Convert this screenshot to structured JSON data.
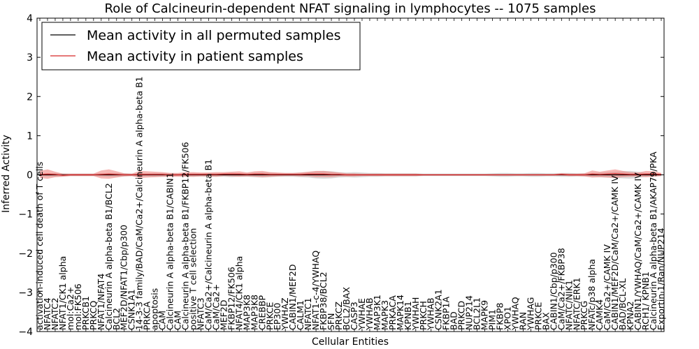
{
  "chart_data": {
    "type": "line",
    "title": "Role of Calcineurin-dependent NFAT signaling in lymphocytes -- 1075 samples",
    "xlabel": "Cellular Entities",
    "ylabel": "Inferred Activity",
    "ylim": [
      -4,
      4
    ],
    "yticks": [
      -4,
      -3,
      -2,
      -1,
      0,
      1,
      2,
      3,
      4
    ],
    "grid": false,
    "legend_position": "top-left",
    "categories": [
      "activation-induced cell death of T cells",
      "NFATC4",
      "NFATC2",
      "NFAT1/CK1 alpha",
      "mol:Ca2+",
      "mol:FK506",
      "PRKCB1",
      "PRKCQ",
      "NFAT1/NFAT4",
      "Calcineurin A alpha-beta B1/BCL2",
      "BCL2",
      "MEF2D/NFAT1/Cbp/p300",
      "CSNK1A1",
      "14-3-3 family/BAD/CaM/Ca2+/Calcineurin A alpha-beta B1",
      "PRKCA",
      "apoptosis",
      "CAM",
      "Calcineurin A alpha-beta B1/CABIN1",
      "CAM",
      "Calcineurin A alpha-beta B1/FKBP12/FK506",
      "positive T cell selection",
      "NFATC3",
      "CaM/Ca2+/Calcineurin A alpha-beta B1",
      "CaM/Ca2+",
      "MEF2D",
      "FKBP12/FK506",
      "NFAT4/CK1 alpha",
      "MAP3K8",
      "MAP3K8",
      "CREBBP",
      "PRKCE",
      "EP300",
      "YWHAZ",
      "CABIN1/MEF2D",
      "CALM1",
      "NFATC1",
      "NFAT1-c-4/YWHAQ",
      "FKBP38/BCL2",
      "SFN",
      "PRKCZ",
      "BCL2/BAX",
      "CASP3",
      "YWHAE",
      "YWHAB",
      "MAP3K1",
      "MAPK3",
      "PRKACA",
      "MAPK14",
      "KPNB1",
      "YWHAH",
      "PRKCH",
      "YWHAB",
      "CSNK2A1",
      "FKBP1A",
      "BAD",
      "PRKCD",
      "NUP214",
      "BCL2L1",
      "MAPK9",
      "PIM1",
      "FKBP8",
      "XPO1",
      "YWHAQ",
      "RAN",
      "YWHAG",
      "PRKCE",
      "BAX",
      "CABIN1/Cbp/p300",
      "CaM/Ca2+/FKBP38",
      "NFATC/NIK1",
      "NFATC/ERK1",
      "PRKCG",
      "NFATc/p38 alpha",
      "CAMK4",
      "CaM/Ca2+/CAMK IV",
      "CABIN1/MEF2D/CaM/Ca2+/CAMK IV",
      "BAD/BCL-XL",
      "KPNA2",
      "CABIN1/YWHAQ/CaM/Ca2+/CAMK IV",
      "RCH1/ KPNB1",
      "Calcineurin A alpha-beta B1/AKAP79/PKA",
      "Exportin 1/Ran/NUP214"
    ],
    "series": [
      {
        "name": "Mean activity in all permuted samples",
        "color": "#000000",
        "values": [
          0,
          0,
          0,
          0,
          0,
          0,
          0,
          0,
          0,
          0,
          0,
          0,
          0,
          0,
          0,
          0,
          0,
          0,
          0,
          0,
          0,
          0,
          0,
          0,
          0,
          0,
          0,
          0,
          0,
          0,
          0,
          0,
          0,
          0,
          0,
          0,
          0,
          0,
          0,
          0,
          0,
          0,
          0,
          0,
          0,
          0,
          0,
          0,
          0,
          0,
          0,
          0,
          0,
          0,
          0,
          0,
          0,
          0,
          0,
          0,
          0,
          0,
          0,
          0,
          0,
          0,
          0,
          0,
          0,
          0,
          0,
          0,
          0,
          0,
          0,
          0,
          0,
          0,
          0,
          0,
          0,
          0
        ],
        "band": [
          0.03,
          0.04,
          0.05,
          0.04,
          0.03,
          0.03,
          0.03,
          0.03,
          0.04,
          0.05,
          0.05,
          0.04,
          0.03,
          0.04,
          0.04,
          0.05,
          0.05,
          0.04,
          0.03,
          0.04,
          0.05,
          0.04,
          0.05,
          0.05,
          0.05,
          0.06,
          0.05,
          0.05,
          0.06,
          0.07,
          0.06,
          0.05,
          0.05,
          0.05,
          0.06,
          0.07,
          0.09,
          0.1,
          0.09,
          0.07,
          0.06,
          0.07,
          0.06,
          0.05,
          0.05,
          0.04,
          0.04,
          0.04,
          0.04,
          0.04,
          0.03,
          0.03,
          0.03,
          0.03,
          0.03,
          0.03,
          0.03,
          0.03,
          0.03,
          0.04,
          0.05,
          0.05,
          0.04,
          0.04,
          0.05,
          0.05,
          0.04,
          0.04,
          0.05,
          0.05,
          0.04,
          0.04,
          0.05,
          0.06,
          0.07,
          0.08,
          0.09,
          0.1,
          0.08,
          0.05,
          0.04,
          0.03
        ]
      },
      {
        "name": "Mean activity in patient samples",
        "color": "#d62728",
        "values": [
          0.01,
          0.02,
          0.01,
          -0.01,
          0,
          0,
          0,
          0,
          0.01,
          0.02,
          0.01,
          0,
          0,
          0.01,
          0.01,
          0.01,
          0.01,
          0,
          0,
          0.01,
          0.01,
          0.01,
          0.01,
          0.01,
          0.02,
          0.02,
          0.02,
          0.01,
          0.02,
          0.02,
          0.01,
          0.01,
          0.01,
          0.01,
          0.01,
          0.02,
          0.02,
          0.02,
          0.01,
          0.01,
          0,
          0,
          0,
          0,
          0,
          0,
          0,
          0,
          0,
          0,
          0,
          0,
          0,
          0,
          0,
          0,
          0,
          0,
          0,
          0,
          0,
          0,
          0,
          0,
          0,
          0,
          0,
          0,
          0.01,
          0,
          0,
          0,
          0.02,
          0.01,
          0.02,
          0.03,
          0.02,
          0.01,
          0.01,
          0.02,
          0.02,
          0.01
        ],
        "band": [
          0.09,
          0.12,
          0.07,
          0.04,
          0.03,
          0.03,
          0.03,
          0.03,
          0.1,
          0.12,
          0.08,
          0.04,
          0.03,
          0.09,
          0.08,
          0.07,
          0.06,
          0.05,
          0.05,
          0.06,
          0.06,
          0.05,
          0.05,
          0.06,
          0.05,
          0.06,
          0.07,
          0.05,
          0.07,
          0.08,
          0.06,
          0.05,
          0.04,
          0.04,
          0.05,
          0.06,
          0.08,
          0.08,
          0.07,
          0.05,
          0.04,
          0.04,
          0.03,
          0.03,
          0.03,
          0.03,
          0.03,
          0.03,
          0.03,
          0.03,
          0.02,
          0.02,
          0.02,
          0.02,
          0.02,
          0.02,
          0.02,
          0.02,
          0.02,
          0.02,
          0.02,
          0.02,
          0.02,
          0.02,
          0.02,
          0.02,
          0.02,
          0.02,
          0.03,
          0.03,
          0.03,
          0.04,
          0.09,
          0.07,
          0.09,
          0.11,
          0.08,
          0.06,
          0.05,
          0.08,
          0.07,
          0.04
        ]
      }
    ]
  }
}
